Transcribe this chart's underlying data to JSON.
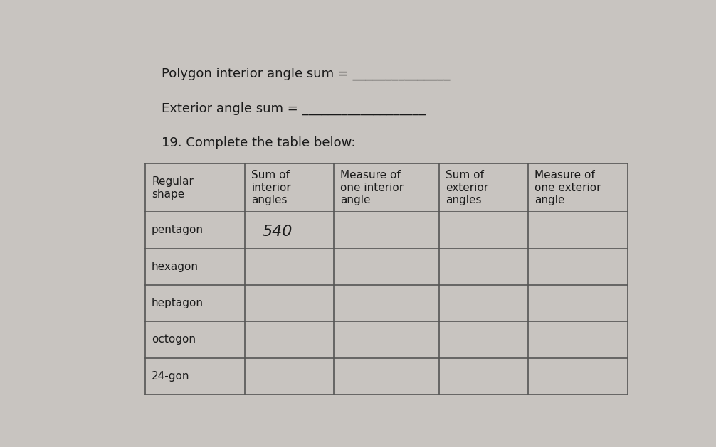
{
  "background_color": "#c8c4c0",
  "title_line1": "Polygon interior angle sum = _______________",
  "title_line2": "Exterior angle sum = ___________________",
  "title_line3": "19. Complete the table below:",
  "col_headers": [
    "Regular\nshape",
    "Sum of\ninterior\nangles",
    "Measure of\none interior\nangle",
    "Sum of\nexterior\nangles",
    "Measure of\none exterior\nangle"
  ],
  "rows": [
    "pentagon",
    "hexagon",
    "heptagon",
    "octogon",
    "24-gon"
  ],
  "pentagon_value": "540",
  "text_color": "#1a1a1a",
  "header_fontsize": 11,
  "body_fontsize": 11,
  "title_fontsize": 13,
  "pentagon_fontsize": 16,
  "line_color": "#555555"
}
